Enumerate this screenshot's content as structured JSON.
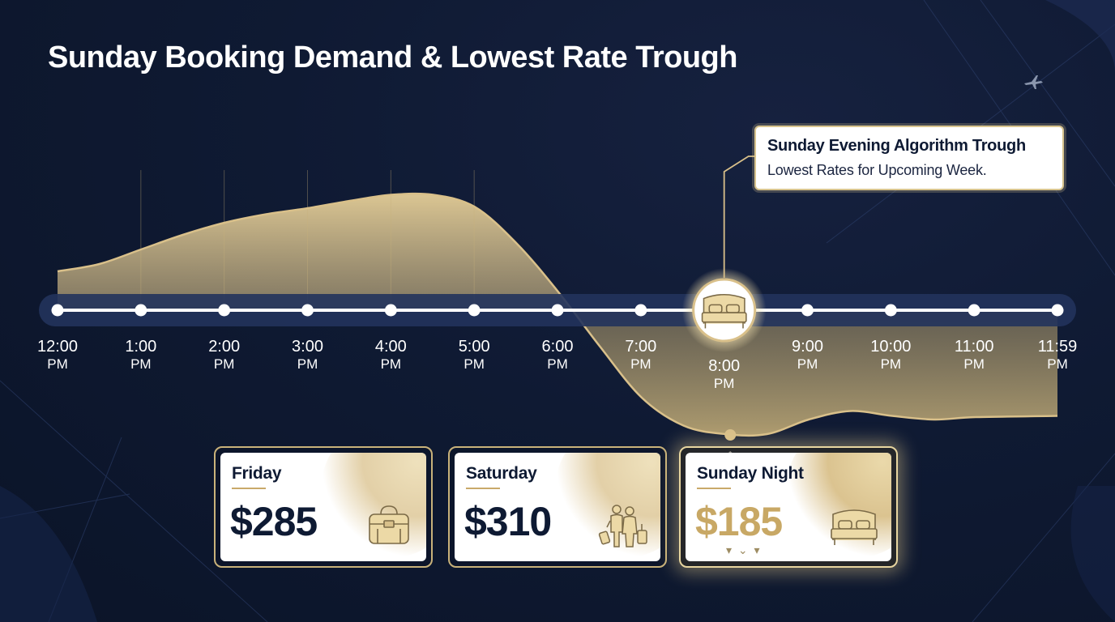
{
  "title": "Sunday Booking Demand & Lowest Rate Trough",
  "callout": {
    "title": "Sunday Evening Algorithm Trough",
    "subtitle": "Lowest Rates for Upcoming Week."
  },
  "colors": {
    "background": "#0f1a33",
    "gold": "#d9c08a",
    "navy_text": "#0e1a33",
    "highlight_price": "#c8a865"
  },
  "chart_data": {
    "type": "area",
    "title": "Sunday Booking Demand & Lowest Rate Trough",
    "x_ticks": [
      {
        "time": "12:00",
        "ampm": "PM"
      },
      {
        "time": "1:00",
        "ampm": "PM"
      },
      {
        "time": "2:00",
        "ampm": "PM"
      },
      {
        "time": "3:00",
        "ampm": "PM"
      },
      {
        "time": "4:00",
        "ampm": "PM"
      },
      {
        "time": "5:00",
        "ampm": "PM"
      },
      {
        "time": "6:00",
        "ampm": "PM"
      },
      {
        "time": "7:00",
        "ampm": "PM"
      },
      {
        "time": "8:00",
        "ampm": "PM"
      },
      {
        "time": "9:00",
        "ampm": "PM"
      },
      {
        "time": "10:00",
        "ampm": "PM"
      },
      {
        "time": "11:00",
        "ampm": "PM"
      },
      {
        "time": "11:59",
        "ampm": "PM"
      }
    ],
    "highlight_tick": "8:00",
    "highlight_icon": "bed-icon",
    "series": [
      {
        "x": [
          0,
          0.5,
          1,
          1.5,
          2,
          2.5,
          3,
          3.5,
          4,
          4.5,
          5,
          5.5,
          6,
          6.5,
          7,
          7.5,
          8,
          8.5,
          9,
          9.5,
          10,
          10.5,
          11,
          11.98
        ],
        "values": [
          0.32,
          0.38,
          0.5,
          0.62,
          0.72,
          0.79,
          0.84,
          0.9,
          0.95,
          0.95,
          0.85,
          0.55,
          0.15,
          -0.3,
          -0.72,
          -0.95,
          -1.02,
          -1.02,
          -0.9,
          -0.83,
          -0.87,
          -0.9,
          -0.88,
          -0.87
        ]
      }
    ],
    "trough_x": 8.06,
    "grid": false,
    "legend": "none"
  },
  "cards": [
    {
      "day": "Friday",
      "price": "$285",
      "icon": "luggage-bag-icon"
    },
    {
      "day": "Saturday",
      "price": "$310",
      "icon": "travelers-icon"
    },
    {
      "day": "Sunday Night",
      "price": "$185",
      "icon": "bed-icon",
      "highlight": true,
      "indicator": "▾ ⌄ ▾"
    }
  ]
}
